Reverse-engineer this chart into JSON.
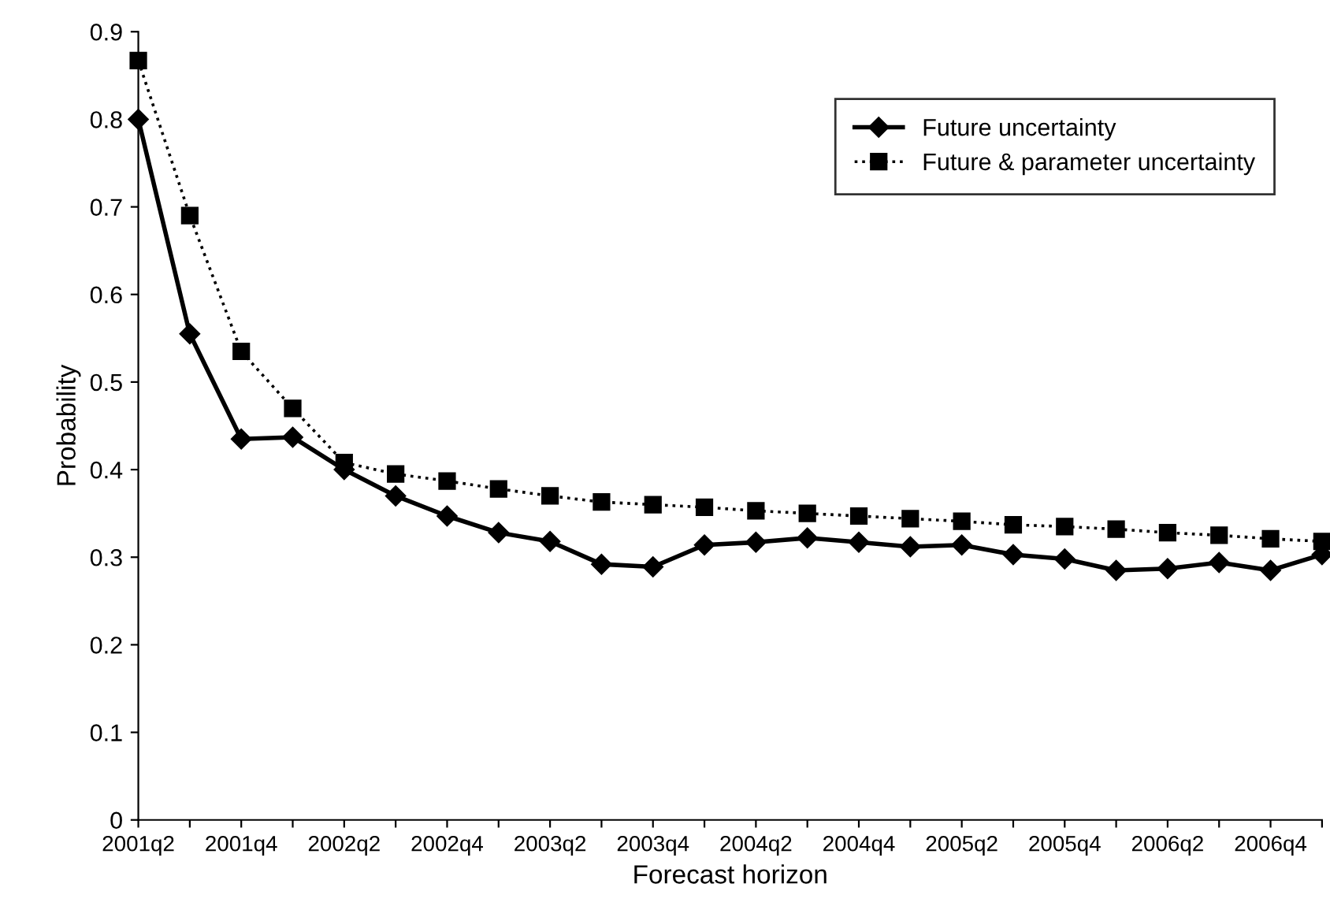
{
  "chart_data": {
    "type": "line",
    "xlabel": "Forecast horizon",
    "ylabel": "Probability",
    "categories": [
      "2001q2",
      null,
      "2001q4",
      null,
      "2002q2",
      null,
      "2002q4",
      null,
      "2003q2",
      null,
      "2003q4",
      null,
      "2004q2",
      null,
      "2004q4",
      null,
      "2005q2",
      null,
      "2005q4",
      null,
      "2006q2",
      null,
      "2006q4",
      null
    ],
    "series": [
      {
        "name": "Future uncertainty",
        "color": "#000000",
        "marker": "diamond",
        "line_style": "solid",
        "values": [
          0.8,
          0.555,
          0.435,
          0.437,
          0.4,
          0.37,
          0.347,
          0.328,
          0.318,
          0.292,
          0.289,
          0.314,
          0.317,
          0.322,
          0.317,
          0.312,
          0.314,
          0.303,
          0.298,
          0.285,
          0.287,
          0.294,
          0.285,
          0.303
        ]
      },
      {
        "name": "Future & parameter uncertainty",
        "color": "#000000",
        "marker": "square",
        "line_style": "dotted",
        "values": [
          0.867,
          0.69,
          0.535,
          0.47,
          0.408,
          0.395,
          0.387,
          0.378,
          0.37,
          0.363,
          0.36,
          0.357,
          0.353,
          0.35,
          0.347,
          0.344,
          0.341,
          0.337,
          0.335,
          0.332,
          0.328,
          0.325,
          0.321,
          0.318
        ]
      }
    ],
    "ylim": [
      0,
      0.9
    ],
    "yticks": [
      0,
      0.1,
      0.2,
      0.3,
      0.4,
      0.5,
      0.6,
      0.7,
      0.8,
      0.9
    ],
    "grid": false,
    "legend": "top right"
  }
}
